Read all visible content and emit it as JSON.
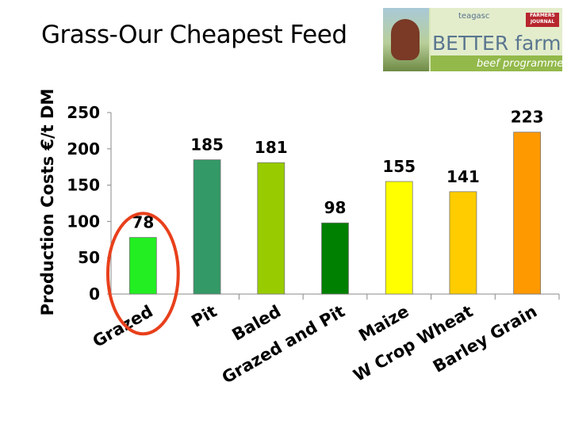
{
  "slide": {
    "title": "Grass-Our Cheapest Feed",
    "logo": {
      "brand_top": "teagasc",
      "brand_badge": "FARMERS JOURNAL",
      "brand_main": "BETTER farm",
      "brand_sub": "beef programme"
    }
  },
  "chart_data": {
    "type": "bar",
    "title": "",
    "xlabel": "",
    "ylabel": "Production Costs €/t DM",
    "ylim": [
      0,
      250
    ],
    "yticks": [
      0,
      50,
      100,
      150,
      200,
      250
    ],
    "categories": [
      "Grazed",
      "Pit",
      "Baled",
      "Grazed and Pit",
      "Maize",
      "W Crop Wheat",
      "Barley Grain"
    ],
    "values": [
      78,
      185,
      181,
      98,
      155,
      141,
      223
    ],
    "colors": [
      "#22ee22",
      "#339966",
      "#99cc00",
      "#008000",
      "#ffff00",
      "#ffcc00",
      "#ff9900"
    ],
    "data_labels": true,
    "grid": false,
    "highlight": {
      "category": "Grazed",
      "shape": "ellipse",
      "color": "#e8401c"
    }
  }
}
